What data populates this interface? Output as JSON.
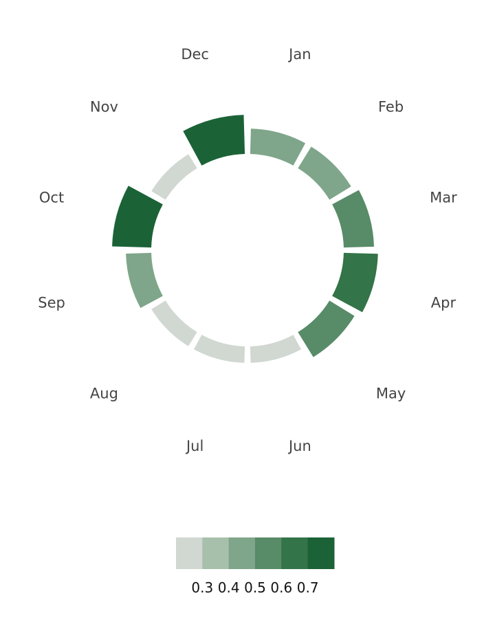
{
  "chart_data": {
    "type": "radial-bar",
    "categories": [
      "Jan",
      "Feb",
      "Mar",
      "Apr",
      "May",
      "Jun",
      "Jul",
      "Aug",
      "Sep",
      "Oct",
      "Nov",
      "Dec"
    ],
    "values": [
      0.48,
      0.48,
      0.58,
      0.66,
      0.56,
      0.28,
      0.28,
      0.28,
      0.48,
      0.76,
      0.28,
      0.76
    ],
    "legend": {
      "ticks": [
        "0.3",
        "0.4",
        "0.5",
        "0.6",
        "0.7"
      ],
      "colors": [
        "#d1d7d1",
        "#a7c0ab",
        "#7fa68a",
        "#588b68",
        "#337448",
        "#1b6337"
      ]
    }
  }
}
